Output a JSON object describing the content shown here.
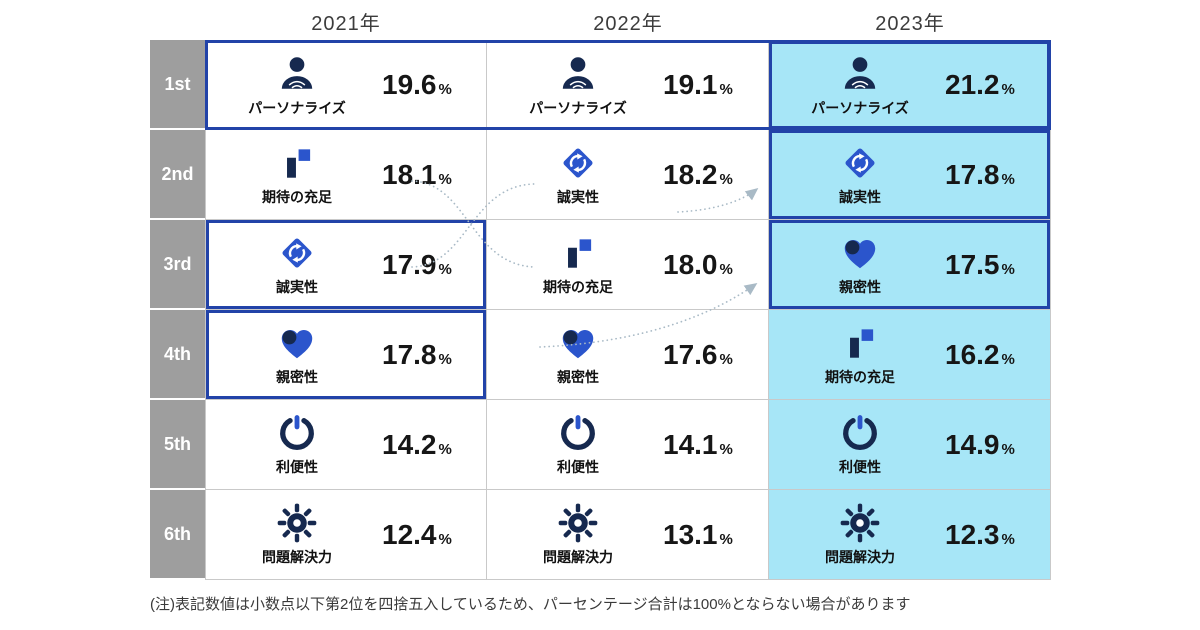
{
  "years": [
    "2021年",
    "2022年",
    "2023年"
  ],
  "ranks": [
    "1st",
    "2nd",
    "3rd",
    "4th",
    "5th",
    "6th"
  ],
  "note": "(注)表記数値は小数点以下第2位を四捨五入しているため、パーセンテージ合計は100%とならない場合があります",
  "colors": {
    "navy": "#16294f",
    "blue": "#2b55cc",
    "highlight_bg": "#a7e6f7",
    "emphasis_border": "#2243a8",
    "rank_bg": "#9e9e9e",
    "grid": "#c9c9c9",
    "arrow": "#a9bac6"
  },
  "rows": [
    {
      "rank": "1st",
      "row_border": true,
      "cells": [
        {
          "icon": "personalize-icon",
          "label": "パーソナライズ",
          "value": "19.6",
          "unit": "%",
          "highlight": false,
          "border": false
        },
        {
          "icon": "personalize-icon",
          "label": "パーソナライズ",
          "value": "19.1",
          "unit": "%",
          "highlight": false,
          "border": false
        },
        {
          "icon": "personalize-icon",
          "label": "パーソナライズ",
          "value": "21.2",
          "unit": "%",
          "highlight": true,
          "border": true
        }
      ]
    },
    {
      "rank": "2nd",
      "row_border": false,
      "cells": [
        {
          "icon": "expectation-icon",
          "label": "期待の充足",
          "value": "18.1",
          "unit": "%",
          "highlight": false,
          "border": false
        },
        {
          "icon": "integrity-icon",
          "label": "誠実性",
          "value": "18.2",
          "unit": "%",
          "highlight": false,
          "border": false
        },
        {
          "icon": "integrity-icon",
          "label": "誠実性",
          "value": "17.8",
          "unit": "%",
          "highlight": true,
          "border": true
        }
      ]
    },
    {
      "rank": "3rd",
      "row_border": false,
      "cells": [
        {
          "icon": "integrity-icon",
          "label": "誠実性",
          "value": "17.9",
          "unit": "%",
          "highlight": false,
          "border": true
        },
        {
          "icon": "expectation-icon",
          "label": "期待の充足",
          "value": "18.0",
          "unit": "%",
          "highlight": false,
          "border": false
        },
        {
          "icon": "intimacy-icon",
          "label": "親密性",
          "value": "17.5",
          "unit": "%",
          "highlight": true,
          "border": true
        }
      ]
    },
    {
      "rank": "4th",
      "row_border": false,
      "cells": [
        {
          "icon": "intimacy-icon",
          "label": "親密性",
          "value": "17.8",
          "unit": "%",
          "highlight": false,
          "border": true
        },
        {
          "icon": "intimacy-icon",
          "label": "親密性",
          "value": "17.6",
          "unit": "%",
          "highlight": false,
          "border": false
        },
        {
          "icon": "expectation-icon",
          "label": "期待の充足",
          "value": "16.2",
          "unit": "%",
          "highlight": true,
          "border": false
        }
      ]
    },
    {
      "rank": "5th",
      "row_border": false,
      "cells": [
        {
          "icon": "convenience-icon",
          "label": "利便性",
          "value": "14.2",
          "unit": "%",
          "highlight": false,
          "border": false
        },
        {
          "icon": "convenience-icon",
          "label": "利便性",
          "value": "14.1",
          "unit": "%",
          "highlight": false,
          "border": false
        },
        {
          "icon": "convenience-icon",
          "label": "利便性",
          "value": "14.9",
          "unit": "%",
          "highlight": true,
          "border": false
        }
      ]
    },
    {
      "rank": "6th",
      "row_border": false,
      "cells": [
        {
          "icon": "problem-solving-icon",
          "label": "問題解決力",
          "value": "12.4",
          "unit": "%",
          "highlight": false,
          "border": false
        },
        {
          "icon": "problem-solving-icon",
          "label": "問題解決力",
          "value": "13.1",
          "unit": "%",
          "highlight": false,
          "border": false
        },
        {
          "icon": "problem-solving-icon",
          "label": "問題解決力",
          "value": "12.3",
          "unit": "%",
          "highlight": true,
          "border": false
        }
      ]
    }
  ],
  "chart_data": {
    "type": "table",
    "columns": [
      "2021年",
      "2022年",
      "2023年"
    ],
    "categories": [
      "1st",
      "2nd",
      "3rd",
      "4th",
      "5th",
      "6th"
    ],
    "series": [
      {
        "name": "2021年",
        "labels": [
          "パーソナライズ",
          "期待の充足",
          "誠実性",
          "親密性",
          "利便性",
          "問題解決力"
        ],
        "values": [
          19.6,
          18.1,
          17.9,
          17.8,
          14.2,
          12.4
        ]
      },
      {
        "name": "2022年",
        "labels": [
          "パーソナライズ",
          "誠実性",
          "期待の充足",
          "親密性",
          "利便性",
          "問題解決力"
        ],
        "values": [
          19.1,
          18.2,
          18.0,
          17.6,
          14.1,
          13.1
        ]
      },
      {
        "name": "2023年",
        "labels": [
          "パーソナライズ",
          "誠実性",
          "親密性",
          "期待の充足",
          "利便性",
          "問題解決力"
        ],
        "values": [
          21.2,
          17.8,
          17.5,
          16.2,
          14.9,
          12.3
        ]
      }
    ],
    "unit": "%",
    "note": "(注)表記数値は小数点以下第2位を四捨五入しているため、パーセンテージ合計は100%とならない場合があります"
  }
}
